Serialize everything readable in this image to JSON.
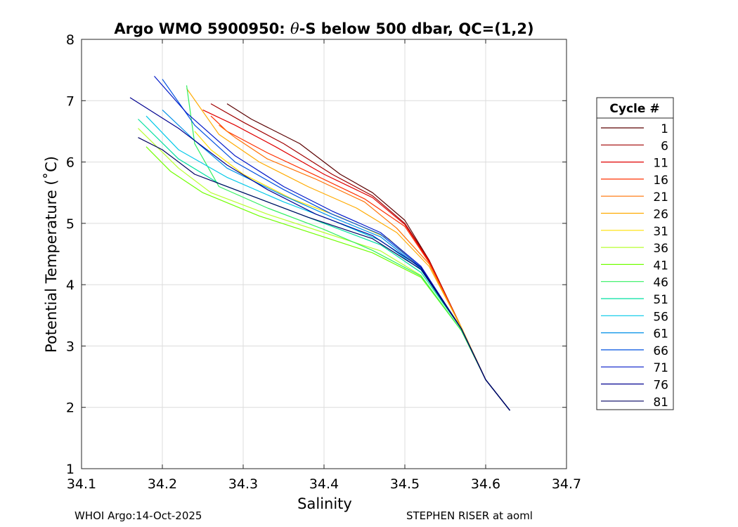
{
  "chart_data": {
    "type": "line",
    "title_prefix": "Argo WMO 5900950: ",
    "title_theta": "θ",
    "title_suffix": "-S below 500 dbar,  QC=(1,2)",
    "xlabel": "Salinity",
    "ylabel": "Potential Temperature (˚C)",
    "xlim": [
      34.1,
      34.7
    ],
    "ylim": [
      1,
      8
    ],
    "xticks": [
      "34.1",
      "34.2",
      "34.3",
      "34.4",
      "34.5",
      "34.6",
      "34.7"
    ],
    "yticks": [
      "1",
      "2",
      "3",
      "4",
      "5",
      "6",
      "7",
      "8"
    ],
    "grid": true,
    "legend_title": "Cycle #",
    "legend_position": "right-outside",
    "series": [
      {
        "name": "1",
        "color": "#5a0000",
        "values": [
          [
            34.63,
            1.95
          ],
          [
            34.6,
            2.45
          ],
          [
            34.57,
            3.3
          ],
          [
            34.53,
            4.4
          ],
          [
            34.5,
            5.05
          ],
          [
            34.46,
            5.5
          ],
          [
            34.42,
            5.8
          ],
          [
            34.37,
            6.3
          ],
          [
            34.31,
            6.7
          ],
          [
            34.28,
            6.95
          ]
        ]
      },
      {
        "name": "6",
        "color": "#a00000",
        "values": [
          [
            34.63,
            1.95
          ],
          [
            34.6,
            2.45
          ],
          [
            34.57,
            3.3
          ],
          [
            34.53,
            4.4
          ],
          [
            34.5,
            5.0
          ],
          [
            34.46,
            5.45
          ],
          [
            34.41,
            5.8
          ],
          [
            34.35,
            6.3
          ],
          [
            34.3,
            6.65
          ],
          [
            34.26,
            6.95
          ]
        ]
      },
      {
        "name": "11",
        "color": "#e00000",
        "values": [
          [
            34.63,
            1.95
          ],
          [
            34.6,
            2.45
          ],
          [
            34.57,
            3.3
          ],
          [
            34.53,
            4.38
          ],
          [
            34.5,
            4.98
          ],
          [
            34.46,
            5.42
          ],
          [
            34.4,
            5.8
          ],
          [
            34.34,
            6.25
          ],
          [
            34.29,
            6.6
          ],
          [
            34.25,
            6.85
          ]
        ]
      },
      {
        "name": "16",
        "color": "#ff3000",
        "values": [
          [
            34.63,
            1.95
          ],
          [
            34.6,
            2.45
          ],
          [
            34.57,
            3.3
          ],
          [
            34.53,
            4.36
          ],
          [
            34.5,
            4.95
          ],
          [
            34.45,
            5.4
          ],
          [
            34.39,
            5.78
          ],
          [
            34.33,
            6.15
          ],
          [
            34.28,
            6.5
          ],
          [
            34.26,
            6.75
          ]
        ]
      },
      {
        "name": "21",
        "color": "#ff7000",
        "values": [
          [
            34.63,
            1.95
          ],
          [
            34.6,
            2.45
          ],
          [
            34.57,
            3.3
          ],
          [
            34.53,
            4.34
          ],
          [
            34.49,
            4.92
          ],
          [
            34.45,
            5.35
          ],
          [
            34.39,
            5.72
          ],
          [
            34.33,
            6.05
          ],
          [
            34.29,
            6.4
          ],
          [
            34.27,
            6.6
          ]
        ]
      },
      {
        "name": "26",
        "color": "#ffaa00",
        "values": [
          [
            34.63,
            1.95
          ],
          [
            34.6,
            2.45
          ],
          [
            34.57,
            3.3
          ],
          [
            34.53,
            4.3
          ],
          [
            34.49,
            4.85
          ],
          [
            34.44,
            5.25
          ],
          [
            34.38,
            5.6
          ],
          [
            34.32,
            6.0
          ],
          [
            34.27,
            6.45
          ],
          [
            34.23,
            7.2
          ]
        ]
      },
      {
        "name": "31",
        "color": "#ffe000",
        "values": [
          [
            34.63,
            1.95
          ],
          [
            34.6,
            2.45
          ],
          [
            34.57,
            3.3
          ],
          [
            34.52,
            4.25
          ],
          [
            34.48,
            4.75
          ],
          [
            34.42,
            5.1
          ],
          [
            34.36,
            5.4
          ],
          [
            34.3,
            5.8
          ],
          [
            34.26,
            6.2
          ],
          [
            34.24,
            6.5
          ]
        ]
      },
      {
        "name": "36",
        "color": "#b8ff30",
        "values": [
          [
            34.63,
            1.95
          ],
          [
            34.6,
            2.45
          ],
          [
            34.57,
            3.25
          ],
          [
            34.52,
            4.15
          ],
          [
            34.47,
            4.55
          ],
          [
            34.4,
            4.85
          ],
          [
            34.33,
            5.15
          ],
          [
            34.26,
            5.5
          ],
          [
            34.22,
            5.9
          ],
          [
            34.17,
            6.55
          ]
        ]
      },
      {
        "name": "41",
        "color": "#70ff00",
        "values": [
          [
            34.63,
            1.95
          ],
          [
            34.6,
            2.45
          ],
          [
            34.57,
            3.25
          ],
          [
            34.52,
            4.12
          ],
          [
            34.46,
            4.52
          ],
          [
            34.39,
            4.82
          ],
          [
            34.32,
            5.12
          ],
          [
            34.25,
            5.5
          ],
          [
            34.21,
            5.85
          ],
          [
            34.18,
            6.25
          ]
        ]
      },
      {
        "name": "46",
        "color": "#30f060",
        "values": [
          [
            34.63,
            1.95
          ],
          [
            34.6,
            2.45
          ],
          [
            34.57,
            3.25
          ],
          [
            34.52,
            4.14
          ],
          [
            34.46,
            4.56
          ],
          [
            34.4,
            4.9
          ],
          [
            34.33,
            5.25
          ],
          [
            34.27,
            5.6
          ],
          [
            34.24,
            6.3
          ],
          [
            34.23,
            7.25
          ]
        ]
      },
      {
        "name": "51",
        "color": "#00e0a0",
        "values": [
          [
            34.63,
            1.95
          ],
          [
            34.6,
            2.45
          ],
          [
            34.57,
            3.28
          ],
          [
            34.52,
            4.2
          ],
          [
            34.47,
            4.65
          ],
          [
            34.4,
            5.0
          ],
          [
            34.34,
            5.3
          ],
          [
            34.27,
            5.65
          ],
          [
            34.22,
            6.05
          ],
          [
            34.17,
            6.7
          ]
        ]
      },
      {
        "name": "56",
        "color": "#00c8e8",
        "values": [
          [
            34.63,
            1.95
          ],
          [
            34.6,
            2.45
          ],
          [
            34.57,
            3.28
          ],
          [
            34.52,
            4.24
          ],
          [
            34.47,
            4.72
          ],
          [
            34.41,
            5.05
          ],
          [
            34.35,
            5.35
          ],
          [
            34.28,
            5.75
          ],
          [
            34.22,
            6.2
          ],
          [
            34.18,
            6.75
          ]
        ]
      },
      {
        "name": "61",
        "color": "#0090e8",
        "values": [
          [
            34.63,
            1.95
          ],
          [
            34.6,
            2.45
          ],
          [
            34.57,
            3.28
          ],
          [
            34.52,
            4.26
          ],
          [
            34.47,
            4.78
          ],
          [
            34.41,
            5.1
          ],
          [
            34.35,
            5.45
          ],
          [
            34.28,
            5.9
          ],
          [
            34.24,
            6.35
          ],
          [
            34.2,
            6.85
          ]
        ]
      },
      {
        "name": "66",
        "color": "#0050e0",
        "values": [
          [
            34.63,
            1.95
          ],
          [
            34.6,
            2.45
          ],
          [
            34.57,
            3.28
          ],
          [
            34.52,
            4.28
          ],
          [
            34.47,
            4.82
          ],
          [
            34.41,
            5.15
          ],
          [
            34.35,
            5.55
          ],
          [
            34.29,
            6.0
          ],
          [
            34.24,
            6.6
          ],
          [
            34.2,
            7.35
          ]
        ]
      },
      {
        "name": "71",
        "color": "#0018c8",
        "values": [
          [
            34.63,
            1.95
          ],
          [
            34.6,
            2.45
          ],
          [
            34.57,
            3.28
          ],
          [
            34.52,
            4.3
          ],
          [
            34.47,
            4.85
          ],
          [
            34.41,
            5.2
          ],
          [
            34.35,
            5.6
          ],
          [
            34.29,
            6.1
          ],
          [
            34.23,
            6.8
          ],
          [
            34.19,
            7.4
          ]
        ]
      },
      {
        "name": "76",
        "color": "#000090",
        "values": [
          [
            34.63,
            1.95
          ],
          [
            34.6,
            2.45
          ],
          [
            34.57,
            3.28
          ],
          [
            34.52,
            4.28
          ],
          [
            34.46,
            4.8
          ],
          [
            34.39,
            5.15
          ],
          [
            34.33,
            5.55
          ],
          [
            34.28,
            5.95
          ],
          [
            34.22,
            6.55
          ],
          [
            34.16,
            7.05
          ]
        ]
      },
      {
        "name": "81",
        "color": "#000060",
        "values": [
          [
            34.63,
            1.95
          ],
          [
            34.6,
            2.45
          ],
          [
            34.57,
            3.28
          ],
          [
            34.52,
            4.25
          ],
          [
            34.46,
            4.75
          ],
          [
            34.38,
            5.1
          ],
          [
            34.31,
            5.45
          ],
          [
            34.24,
            5.8
          ],
          [
            34.2,
            6.2
          ],
          [
            34.17,
            6.4
          ]
        ]
      }
    ]
  },
  "footer": {
    "left": "WHOI Argo:14-Oct-2025",
    "right": "STEPHEN RISER at aoml"
  }
}
